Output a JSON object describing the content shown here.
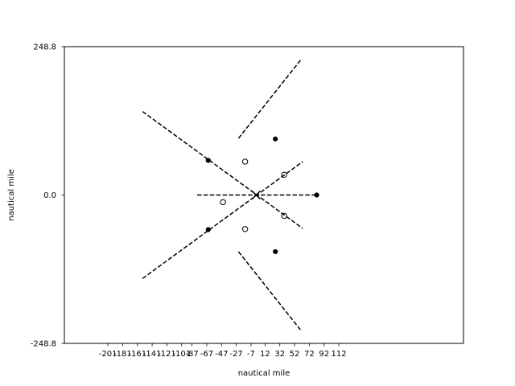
{
  "chart_data": {
    "type": "line",
    "title": "",
    "xlabel": "nautical mile",
    "ylabel": "nautical mile",
    "xlim": [
      -260.0,
      281.0
    ],
    "ylim": [
      -248.8,
      248.8
    ],
    "x_ticks": [
      -201,
      -181,
      -161,
      -141,
      -121,
      -101,
      -87,
      -67,
      -47,
      -27,
      -7,
      12,
      32,
      52,
      72,
      92,
      112
    ],
    "x_tick_labels": [
      "-201",
      "-181",
      "-161",
      "-141",
      "-121",
      "-101",
      "-87",
      "-67",
      "-47",
      "-27",
      "-7",
      "12",
      "32",
      "52",
      "72",
      "92",
      "112"
    ],
    "y_ticks": [
      -248.8,
      0.0,
      248.8
    ],
    "y_tick_labels": [
      "-248.8",
      "0.0",
      "248.8"
    ],
    "center": {
      "x": 0,
      "y": 0
    },
    "series": [
      {
        "line": [
          [
            -154,
            140
          ],
          [
            63,
            -56
          ]
        ],
        "points": [
          [
            -65,
            58
          ],
          [
            -65,
            -58
          ]
        ],
        "style": "dashed"
      },
      {
        "line": [
          [
            -154,
            -140
          ],
          [
            63,
            56
          ]
        ],
        "points": [
          [
            -15,
            56
          ],
          [
            38,
            34
          ]
        ],
        "style": "dashed"
      },
      {
        "line": [
          [
            -24,
            95
          ],
          [
            60,
            226
          ]
        ],
        "points": [
          [
            26,
            94
          ]
        ],
        "style": "dashed"
      },
      {
        "line": [
          [
            -24,
            -95
          ],
          [
            60,
            -226
          ]
        ],
        "points": [
          [
            26,
            -95
          ],
          [
            -15,
            -57
          ]
        ],
        "style": "dashed"
      },
      {
        "line": [
          [
            -80,
            0
          ],
          [
            82,
            0
          ]
        ],
        "points": [
          [
            82,
            0
          ],
          [
            -45,
            -12
          ],
          [
            38,
            -35
          ]
        ],
        "style": "dashed"
      }
    ],
    "markers": [
      {
        "x": -65,
        "y": 58,
        "style": "filled"
      },
      {
        "x": -65,
        "y": -58,
        "style": "filled"
      },
      {
        "x": 26,
        "y": 94,
        "style": "filled"
      },
      {
        "x": 26,
        "y": -95,
        "style": "filled"
      },
      {
        "x": 82,
        "y": 0,
        "style": "filled"
      },
      {
        "x": -15,
        "y": 56,
        "style": "open"
      },
      {
        "x": -15,
        "y": -57,
        "style": "open"
      },
      {
        "x": 38,
        "y": 34,
        "style": "open"
      },
      {
        "x": 38,
        "y": -35,
        "style": "open"
      },
      {
        "x": -45,
        "y": -12,
        "style": "open"
      }
    ],
    "grid": false,
    "legend": "none"
  }
}
